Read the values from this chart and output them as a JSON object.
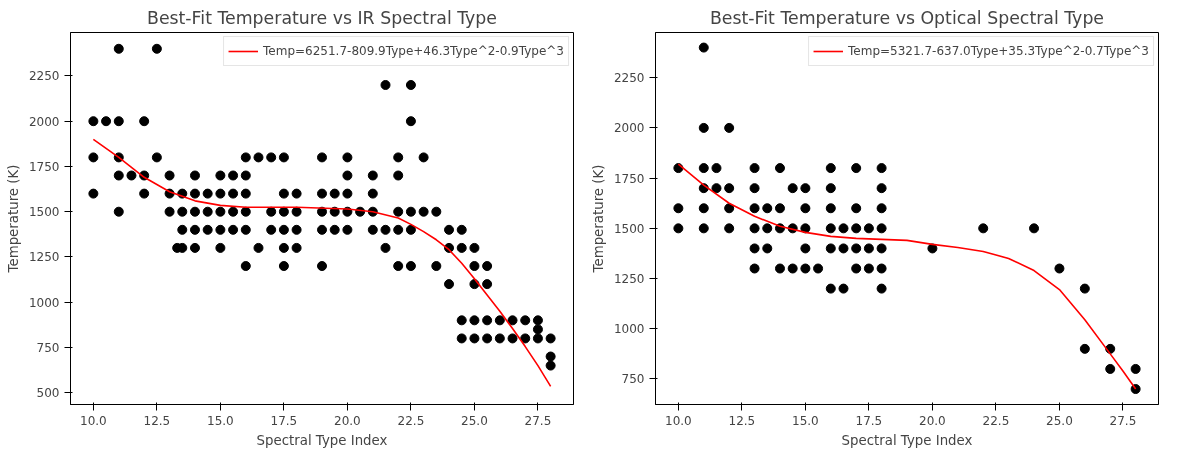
{
  "chart_data": [
    {
      "type": "scatter",
      "title": "Best-Fit Temperature vs IR Spectral Type",
      "xlabel": "Spectral Type Index",
      "ylabel": "Temperature (K)",
      "xlim": [
        9.1,
        28.9
      ],
      "ylim": [
        435,
        2490
      ],
      "xticks": [
        {
          "value": 10,
          "label": "10.0"
        },
        {
          "value": 12.5,
          "label": "12.5"
        },
        {
          "value": 15,
          "label": "15.0"
        },
        {
          "value": 17.5,
          "label": "17.5"
        },
        {
          "value": 20,
          "label": "20.0"
        },
        {
          "value": 22.5,
          "label": "22.5"
        },
        {
          "value": 25,
          "label": "25.0"
        },
        {
          "value": 27.5,
          "label": "27.5"
        }
      ],
      "yticks": [
        500,
        750,
        1000,
        1250,
        1500,
        1750,
        2000,
        2250
      ],
      "grid": false,
      "legend": "top right",
      "series": [
        {
          "marker": "circle",
          "color": "#000000",
          "x": [
            10,
            10,
            10,
            10.5,
            11,
            11,
            11,
            11,
            11,
            11.5,
            12,
            12,
            12,
            12.5,
            12.5,
            13,
            13,
            13,
            13.5,
            13.5,
            13.5,
            13.5,
            13.3,
            14,
            14,
            14,
            14,
            14,
            14.5,
            14.5,
            14.5,
            15,
            15,
            15,
            15,
            15,
            15.5,
            15.5,
            15.5,
            15.5,
            16,
            16,
            16,
            16,
            16,
            16,
            16.5,
            16.5,
            17,
            17,
            17,
            17.5,
            17.5,
            17.5,
            17.5,
            17.5,
            17.5,
            18,
            18,
            18,
            18,
            19,
            19,
            19,
            19,
            19,
            19.5,
            19.5,
            19.5,
            20,
            20,
            20,
            20,
            20,
            20.5,
            21,
            21,
            21,
            21,
            21.5,
            21.5,
            21.5,
            22,
            22,
            22,
            22,
            22,
            22.5,
            22.5,
            22.5,
            22.5,
            22.5,
            23,
            23,
            23.5,
            23.5,
            24,
            24,
            24,
            24.5,
            24.5,
            24.5,
            24.5,
            25,
            25,
            25,
            25,
            25,
            25.5,
            25.5,
            25.5,
            25.5,
            26,
            26,
            26.5,
            26.5,
            27,
            27,
            27.5,
            27.5,
            27.5,
            28,
            28,
            28
          ],
          "values": [
            2000,
            1800,
            1600,
            2000,
            2400,
            2000,
            1800,
            1700,
            1500,
            1700,
            2000,
            1700,
            1600,
            2400,
            1800,
            1700,
            1600,
            1500,
            1600,
            1500,
            1400,
            1300,
            1300,
            1700,
            1600,
            1500,
            1400,
            1300,
            1600,
            1500,
            1400,
            1700,
            1600,
            1500,
            1400,
            1300,
            1700,
            1600,
            1500,
            1400,
            1800,
            1700,
            1600,
            1500,
            1400,
            1200,
            1800,
            1300,
            1800,
            1500,
            1400,
            1800,
            1600,
            1500,
            1400,
            1300,
            1200,
            1600,
            1500,
            1400,
            1300,
            1800,
            1600,
            1500,
            1400,
            1200,
            1600,
            1500,
            1400,
            1800,
            1700,
            1600,
            1500,
            1400,
            1500,
            1700,
            1600,
            1500,
            1400,
            2200,
            1400,
            1300,
            1800,
            1700,
            1500,
            1400,
            1200,
            2200,
            2000,
            1500,
            1400,
            1200,
            1800,
            1500,
            1500,
            1200,
            1400,
            1300,
            1100,
            1400,
            1300,
            900,
            800,
            1300,
            1200,
            1100,
            900,
            800,
            1200,
            1100,
            900,
            800,
            900,
            800,
            900,
            800,
            900,
            800,
            900,
            850,
            800,
            800,
            700,
            650
          ]
        },
        {
          "type": "line",
          "name": "Temp=6251.7-809.9Type+46.3Type^2-0.9Type^3",
          "color": "#ff0000",
          "x": [
            10,
            11,
            12,
            13,
            14,
            15,
            16,
            18,
            20,
            21,
            22,
            22.5,
            23,
            23.5,
            24,
            24.5,
            25,
            25.5,
            26,
            26.5,
            27,
            27.5,
            28
          ],
          "values": [
            1900,
            1800,
            1690,
            1610,
            1560,
            1535,
            1525,
            1525,
            1515,
            1500,
            1465,
            1430,
            1390,
            1345,
            1290,
            1215,
            1130,
            1040,
            950,
            855,
            755,
            650,
            535
          ]
        }
      ]
    },
    {
      "type": "scatter",
      "title": "Best-Fit Temperature vs Optical Spectral Type",
      "xlabel": "Spectral Type Index",
      "ylabel": "Temperature (K)",
      "xlim": [
        9.1,
        28.9
      ],
      "ylim": [
        623,
        2475
      ],
      "xticks": [
        {
          "value": 10,
          "label": "10.0"
        },
        {
          "value": 12.5,
          "label": "12.5"
        },
        {
          "value": 15,
          "label": "15.0"
        },
        {
          "value": 17.5,
          "label": "17.5"
        },
        {
          "value": 20,
          "label": "20.0"
        },
        {
          "value": 22.5,
          "label": "22.5"
        },
        {
          "value": 25,
          "label": "25.0"
        },
        {
          "value": 27.5,
          "label": "27.5"
        }
      ],
      "yticks": [
        750,
        1000,
        1250,
        1500,
        1750,
        2000,
        2250
      ],
      "grid": false,
      "legend": "top right",
      "series": [
        {
          "marker": "circle",
          "color": "#000000",
          "x": [
            10,
            10,
            10,
            11,
            11,
            11,
            11,
            11,
            11,
            11.5,
            11.5,
            12,
            12,
            12,
            12,
            13,
            13,
            13,
            13,
            13,
            13,
            13.5,
            13.5,
            13.5,
            14,
            14,
            14,
            14,
            14.5,
            14.5,
            14.5,
            15,
            15,
            15,
            15,
            15,
            15.5,
            16,
            16,
            16,
            16,
            16,
            16,
            16.5,
            16.5,
            16.5,
            17,
            17,
            17,
            17,
            17,
            17.5,
            17.5,
            17.5,
            18,
            18,
            18,
            18,
            18,
            18,
            18,
            20,
            22,
            24,
            25,
            26,
            26,
            27,
            27,
            28,
            28
          ],
          "values": [
            1800,
            1600,
            1500,
            2400,
            2000,
            1800,
            1700,
            1600,
            1500,
            1800,
            1700,
            2000,
            1700,
            1600,
            1500,
            1800,
            1700,
            1600,
            1500,
            1400,
            1300,
            1600,
            1500,
            1400,
            1800,
            1600,
            1500,
            1300,
            1700,
            1500,
            1300,
            1700,
            1600,
            1500,
            1400,
            1300,
            1300,
            1800,
            1700,
            1600,
            1500,
            1400,
            1200,
            1500,
            1400,
            1200,
            1800,
            1600,
            1500,
            1400,
            1300,
            1500,
            1400,
            1300,
            1800,
            1700,
            1600,
            1500,
            1400,
            1300,
            1200,
            1400,
            1500,
            1500,
            1300,
            1200,
            900,
            900,
            800,
            800,
            700
          ]
        },
        {
          "type": "line",
          "name": "Temp=5321.7-637.0Type+35.3Type^2-0.7Type^3",
          "color": "#ff0000",
          "x": [
            10,
            11,
            12,
            13,
            14,
            15,
            16,
            17,
            18,
            19,
            20,
            21,
            22,
            23,
            24,
            25,
            26,
            27,
            27.5,
            28
          ],
          "values": [
            1820,
            1715,
            1625,
            1560,
            1510,
            1480,
            1460,
            1450,
            1445,
            1440,
            1420,
            1405,
            1385,
            1350,
            1290,
            1195,
            1045,
            875,
            790,
            700
          ]
        }
      ]
    }
  ]
}
